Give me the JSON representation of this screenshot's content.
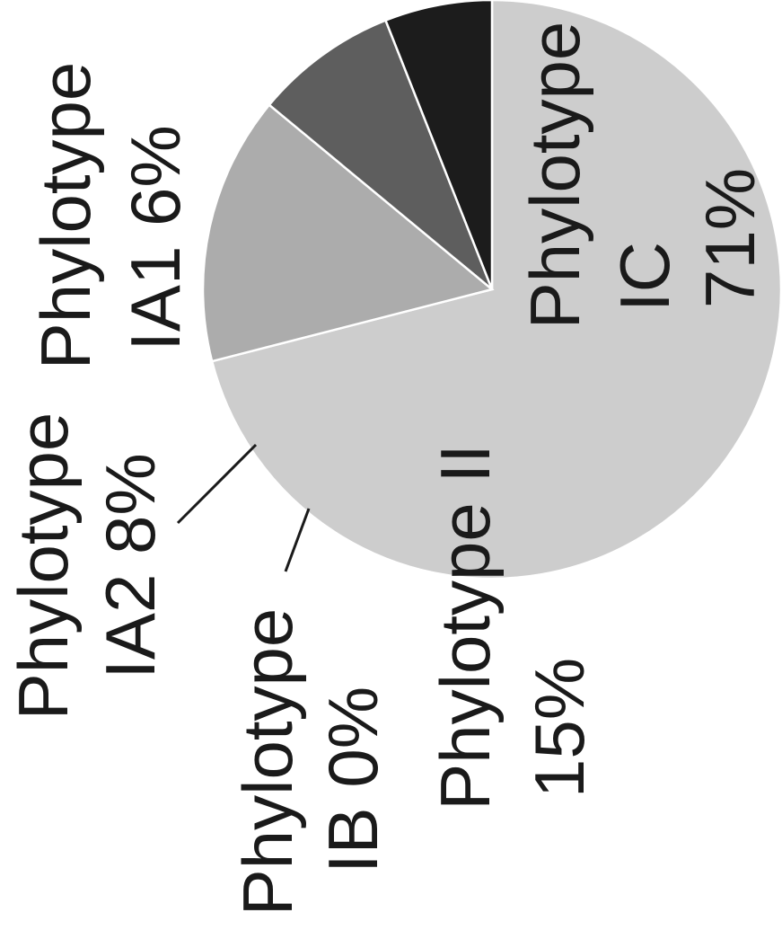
{
  "chart_data": {
    "type": "pie",
    "orientation": "rotated-90-counterclockwise",
    "slices": [
      {
        "label": "Phylotype IC",
        "value": 71,
        "value_label": "71%",
        "color": "#cdcdcd"
      },
      {
        "label": "Phylotype II",
        "value": 15,
        "value_label": "15%",
        "color": "#acacac"
      },
      {
        "label": "Phylotype IB",
        "value": 0,
        "value_label": "0%",
        "color": "#cdcdcd"
      },
      {
        "label": "Phylotype IA2",
        "value": 8,
        "value_label": "8%",
        "color": "#5e5e5e"
      },
      {
        "label": "Phylotype IA1",
        "value": 6,
        "value_label": "6%",
        "color": "#1c1c1c"
      }
    ],
    "text_lines": {
      "ic_line1": "Phylotype",
      "ic_line2": "IC",
      "ic_line3": "71%",
      "ia1_line1": "Phylotype",
      "ia1_line2": "IA1 6%",
      "ia2_line1": "Phylotype",
      "ia2_line2": "IA2 8%",
      "ib_line1": "Phylotype",
      "ib_line2": "IB 0%",
      "ii_line1": "Phylotype II",
      "ii_line2": "15%"
    }
  }
}
